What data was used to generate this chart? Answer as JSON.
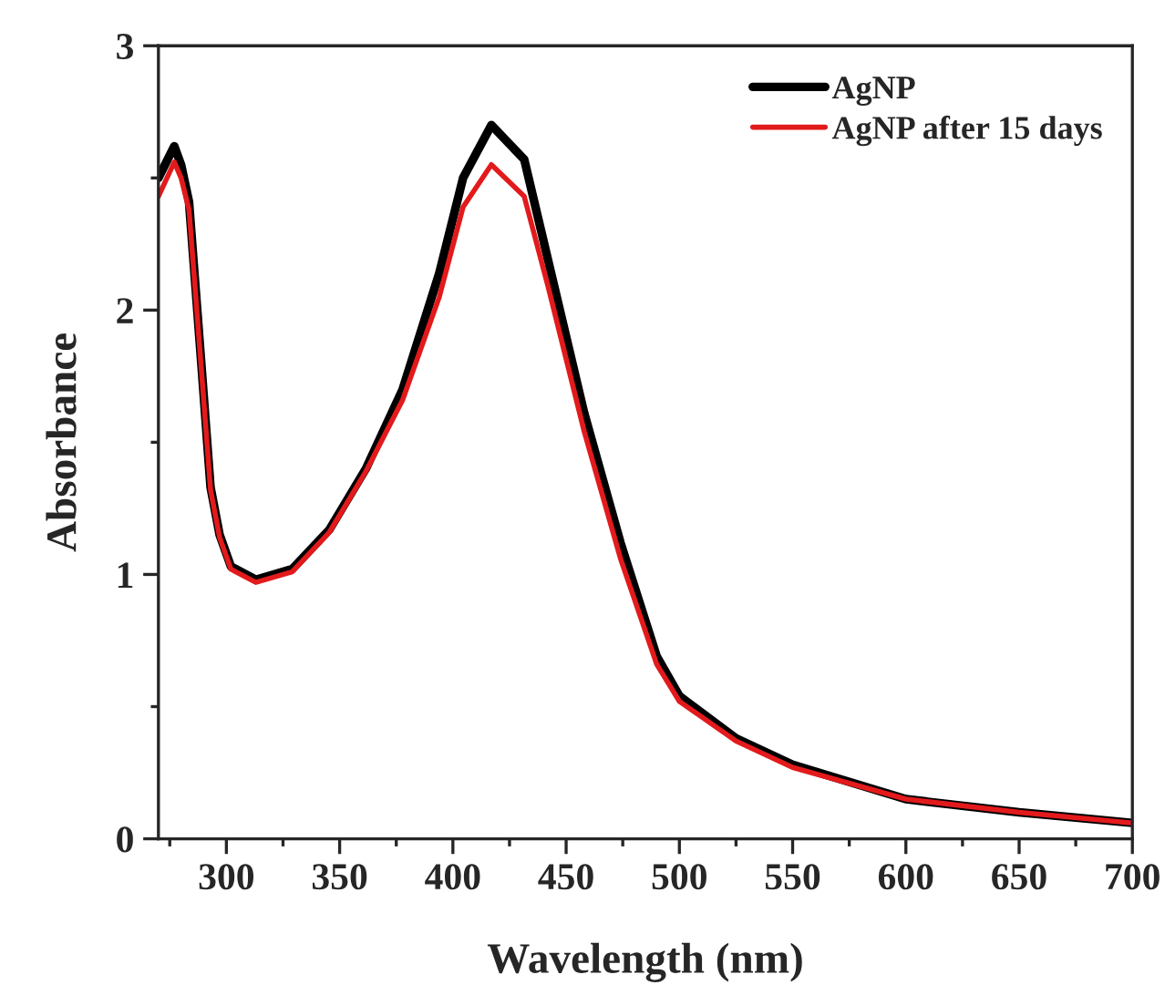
{
  "chart_data": {
    "type": "line",
    "xlabel": "Wavelength (nm)",
    "ylabel": "Absorbance",
    "xlim": [
      270,
      700
    ],
    "ylim": [
      0,
      3
    ],
    "xticks": [
      300,
      350,
      400,
      450,
      500,
      550,
      600,
      650,
      700
    ],
    "yticks": [
      0,
      1,
      2,
      3
    ],
    "grid": false,
    "legend": "top right",
    "marker": "none",
    "line_style": "solid",
    "series": [
      {
        "name": "AgNP",
        "color": "#000000",
        "x": [
          270,
          277,
          280,
          283.5,
          289,
          293,
          297,
          302,
          313,
          329,
          345.5,
          361.6,
          377.8,
          394,
          404.5,
          417,
          431.5,
          442,
          458,
          474,
          490,
          500,
          525,
          550,
          600,
          650,
          700
        ],
        "values": [
          2.5,
          2.62,
          2.55,
          2.41,
          1.79,
          1.33,
          1.15,
          1.03,
          0.98,
          1.02,
          1.17,
          1.4,
          1.7,
          2.14,
          2.5,
          2.7,
          2.57,
          2.19,
          1.61,
          1.12,
          0.69,
          0.54,
          0.38,
          0.28,
          0.15,
          0.1,
          0.06
        ]
      },
      {
        "name": "AgNP after 15 days",
        "color": "#e31a1c",
        "x": [
          270,
          277,
          280,
          283.5,
          289,
          293,
          297,
          302,
          313,
          329,
          345.5,
          361.6,
          377.8,
          394,
          404.5,
          417,
          431.5,
          442,
          458,
          474,
          490,
          500,
          525,
          550,
          600,
          650,
          700
        ],
        "values": [
          2.43,
          2.56,
          2.5,
          2.38,
          1.77,
          1.32,
          1.14,
          1.02,
          0.97,
          1.01,
          1.16,
          1.39,
          1.66,
          2.05,
          2.39,
          2.55,
          2.43,
          2.09,
          1.54,
          1.06,
          0.66,
          0.52,
          0.37,
          0.27,
          0.15,
          0.1,
          0.06
        ]
      }
    ]
  }
}
